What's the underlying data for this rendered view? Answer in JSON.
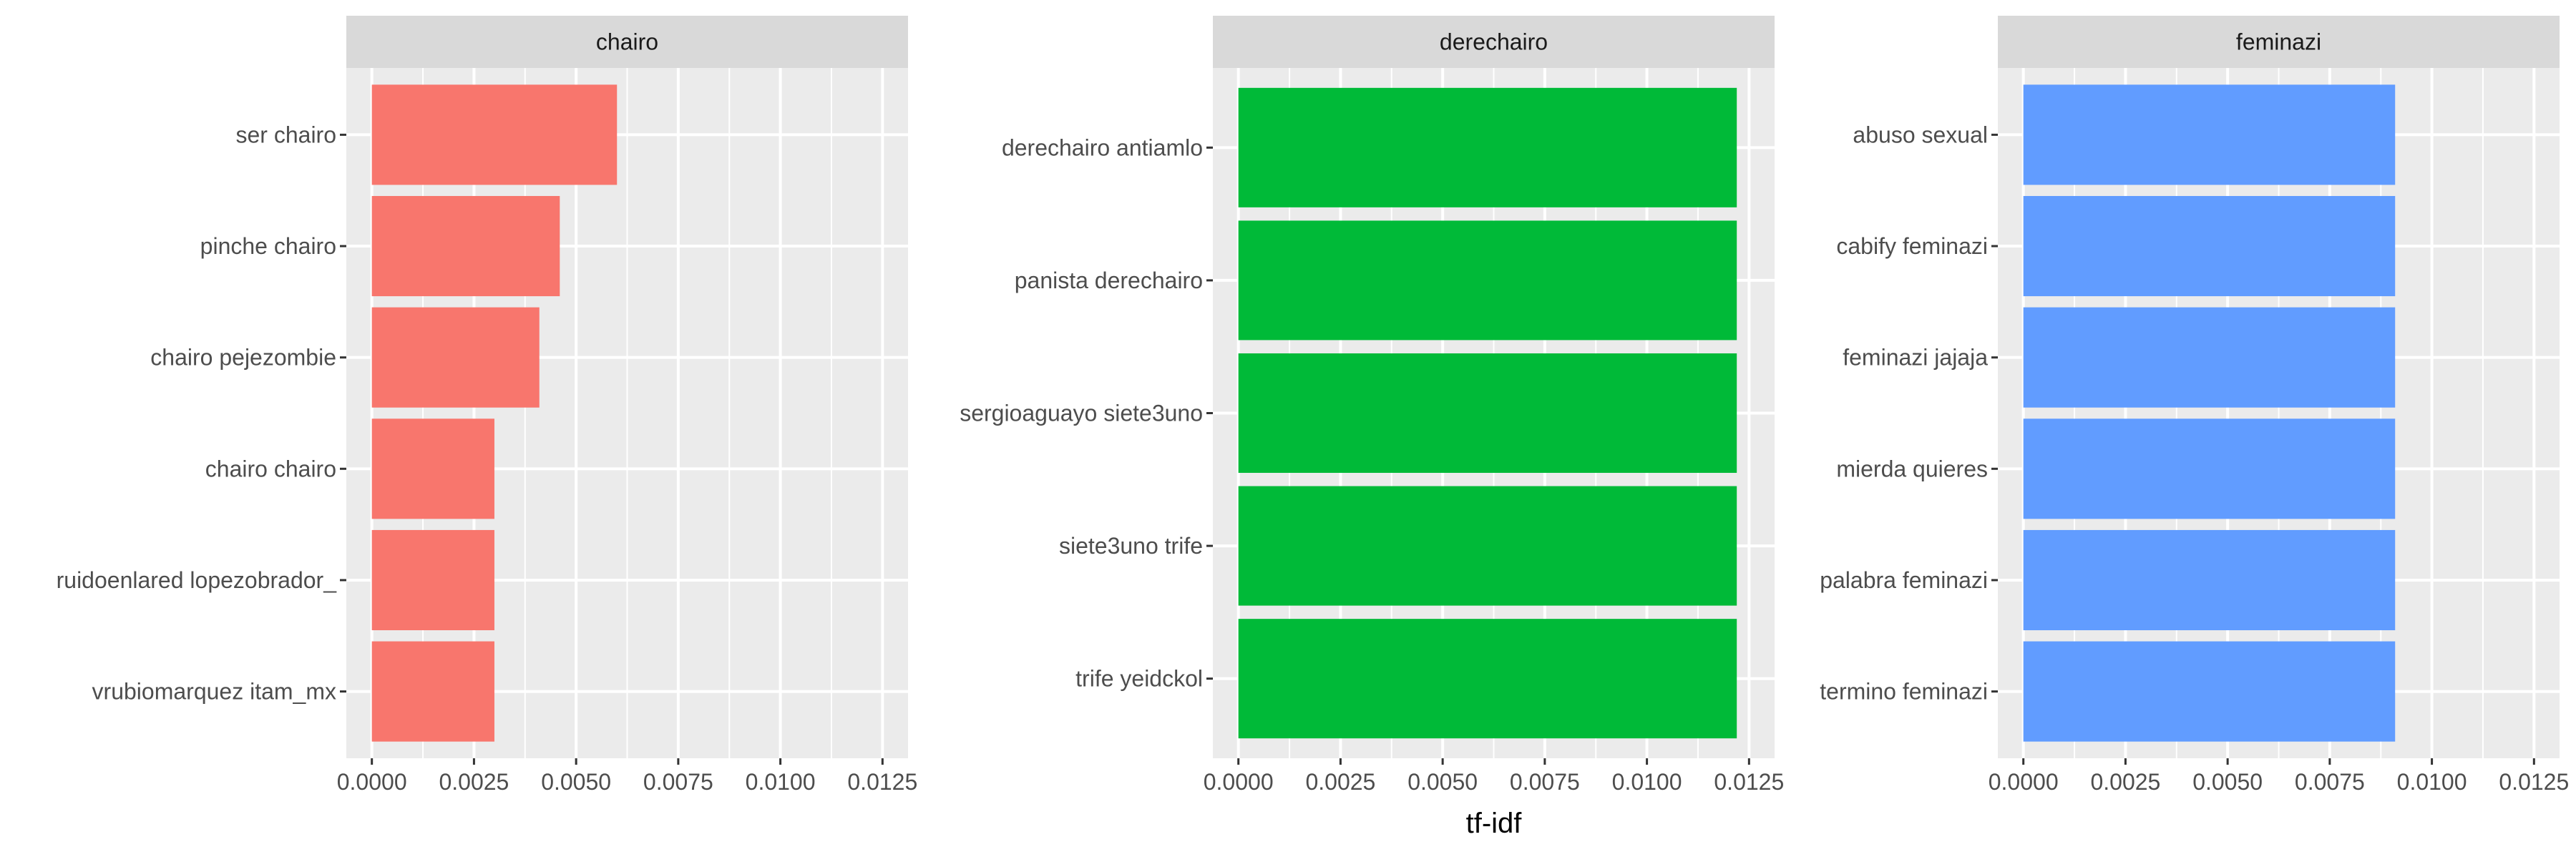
{
  "chart_data": {
    "type": "bar",
    "orientation": "horizontal",
    "xlabel": "tf-idf",
    "ylabel": "",
    "xlim": [
      0,
      0.0125
    ],
    "x_ticks": [
      0,
      0.0025,
      0.005,
      0.0075,
      0.01,
      0.0125
    ],
    "x_tick_labels": [
      "0.0000",
      "0.0025",
      "0.0050",
      "0.0075",
      "0.0100",
      "0.0125"
    ],
    "grid": true,
    "legend": "none",
    "panel_background": "#ebebeb",
    "strip_background": "#d9d9d9",
    "panels": [
      {
        "title": "chairo",
        "color": "#F8766D",
        "categories": [
          "ser chairo",
          "pinche chairo",
          "chairo pejezombie",
          "chairo chairo",
          "ruidoenlared lopezobrador_",
          "vrubiomarquez itam_mx"
        ],
        "values": [
          0.006,
          0.0046,
          0.0041,
          0.003,
          0.003,
          0.003
        ]
      },
      {
        "title": "derechairo",
        "color": "#00BA38",
        "categories": [
          "derechairo antiamlo",
          "panista derechairo",
          "sergioaguayo siete3uno",
          "siete3uno trife",
          "trife yeidckol"
        ],
        "values": [
          0.0122,
          0.0122,
          0.0122,
          0.0122,
          0.0122
        ]
      },
      {
        "title": "feminazi",
        "color": "#619CFF",
        "categories": [
          "abuso sexual",
          "cabify feminazi",
          "feminazi jajaja",
          "mierda quieres",
          "palabra feminazi",
          "termino feminazi"
        ],
        "values": [
          0.0091,
          0.0091,
          0.0091,
          0.0091,
          0.0091,
          0.0091
        ]
      }
    ]
  }
}
